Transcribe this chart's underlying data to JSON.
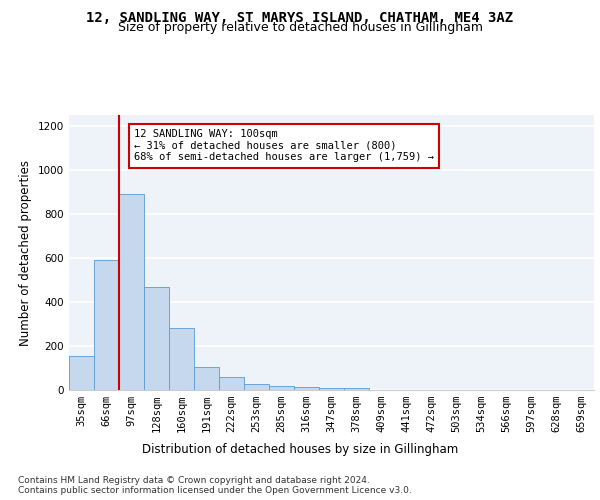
{
  "title_line1": "12, SANDLING WAY, ST MARYS ISLAND, CHATHAM, ME4 3AZ",
  "title_line2": "Size of property relative to detached houses in Gillingham",
  "xlabel": "Distribution of detached houses by size in Gillingham",
  "ylabel": "Number of detached properties",
  "categories": [
    "35sqm",
    "66sqm",
    "97sqm",
    "128sqm",
    "160sqm",
    "191sqm",
    "222sqm",
    "253sqm",
    "285sqm",
    "316sqm",
    "347sqm",
    "378sqm",
    "409sqm",
    "441sqm",
    "472sqm",
    "503sqm",
    "534sqm",
    "566sqm",
    "597sqm",
    "628sqm",
    "659sqm"
  ],
  "values": [
    155,
    590,
    890,
    470,
    280,
    105,
    60,
    28,
    20,
    14,
    10,
    10,
    0,
    0,
    0,
    0,
    0,
    0,
    0,
    0,
    0
  ],
  "bar_color": "#c5d8ed",
  "bar_edge_color": "#5b9bd5",
  "vline_x": 2,
  "vline_color": "#cc0000",
  "ylim": [
    0,
    1250
  ],
  "yticks": [
    0,
    200,
    400,
    600,
    800,
    1000,
    1200
  ],
  "annotation_text": "12 SANDLING WAY: 100sqm\n← 31% of detached houses are smaller (800)\n68% of semi-detached houses are larger (1,759) →",
  "annotation_box_color": "#ffffff",
  "annotation_box_edge_color": "#cc0000",
  "footer_text": "Contains HM Land Registry data © Crown copyright and database right 2024.\nContains public sector information licensed under the Open Government Licence v3.0.",
  "background_color": "#eef2f9",
  "grid_color": "#ffffff",
  "title_fontsize": 10,
  "subtitle_fontsize": 9,
  "axis_label_fontsize": 8.5,
  "tick_fontsize": 7.5,
  "footer_fontsize": 6.5
}
